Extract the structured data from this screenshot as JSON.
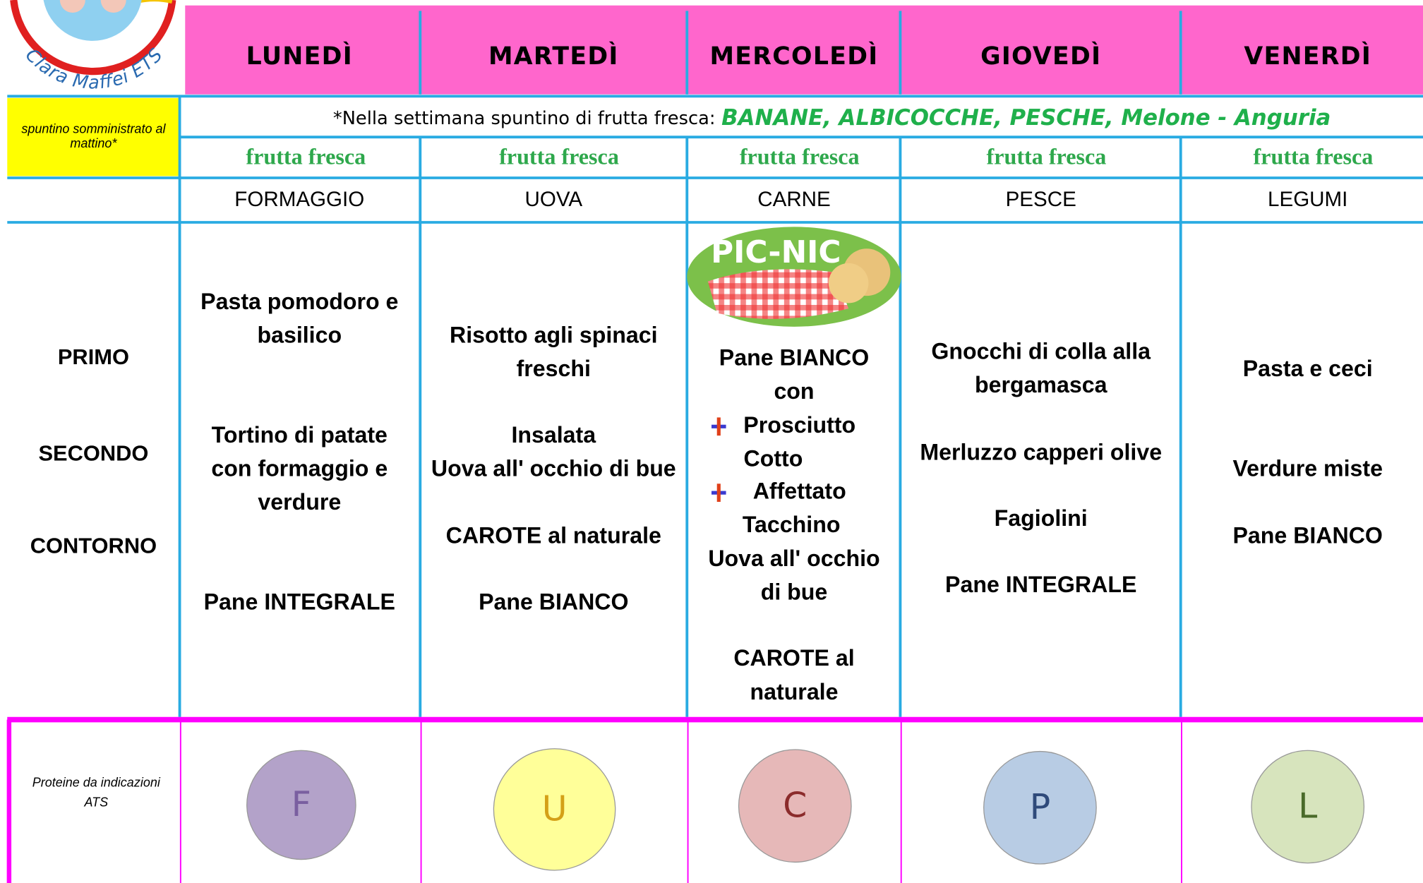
{
  "logo": "Clara Maffei ETS",
  "days": [
    "LUNEDÌ",
    "MARTEDÌ",
    "MERCOLEDÌ",
    "GIOVEDÌ",
    "VENERDÌ"
  ],
  "snack": {
    "label": [
      "spuntino somministrato al",
      "mattino*"
    ],
    "note": "*Nella settimana spuntino di frutta fresca:",
    "fruits": "BANANE, ALBICOCCHE, PESCHE, Melone - Anguria",
    "items": [
      "frutta fresca",
      "frutta fresca",
      "frutta fresca",
      "frutta fresca",
      "frutta fresca"
    ]
  },
  "proteins": [
    "FORMAGGIO",
    "UOVA",
    "CARNE",
    "PESCE",
    "LEGUMI"
  ],
  "courses": [
    "PRIMO",
    "SECONDO",
    "CONTORNO"
  ],
  "picnic": "PIC-NIC",
  "menu": [
    [
      "Pasta pomodoro e",
      "basilico",
      "Tortino di patate",
      "con formaggio e",
      "verdure",
      "Pane INTEGRALE"
    ],
    [
      "Risotto agli spinaci",
      "freschi",
      "Insalata",
      "Uova all' occhio di bue",
      "CAROTE al naturale",
      "Pane BIANCO"
    ],
    [
      "Pane BIANCO",
      "con",
      "Prosciutto",
      "Cotto",
      "Affettato",
      "Tacchino",
      "Uova all' occhio",
      "di bue",
      "CAROTE al",
      "naturale"
    ],
    [
      "Gnocchi di colla alla",
      "bergamasca",
      "Merluzzo capperi olive",
      "Fagiolini",
      "Pane INTEGRALE"
    ],
    [
      "Pasta e ceci",
      "Verdure miste",
      "Pane BIANCO"
    ]
  ],
  "protein_legend": {
    "label": [
      "Proteine da indicazioni",
      "ATS"
    ],
    "letters": [
      "F",
      "U",
      "C",
      "P",
      "L"
    ]
  }
}
